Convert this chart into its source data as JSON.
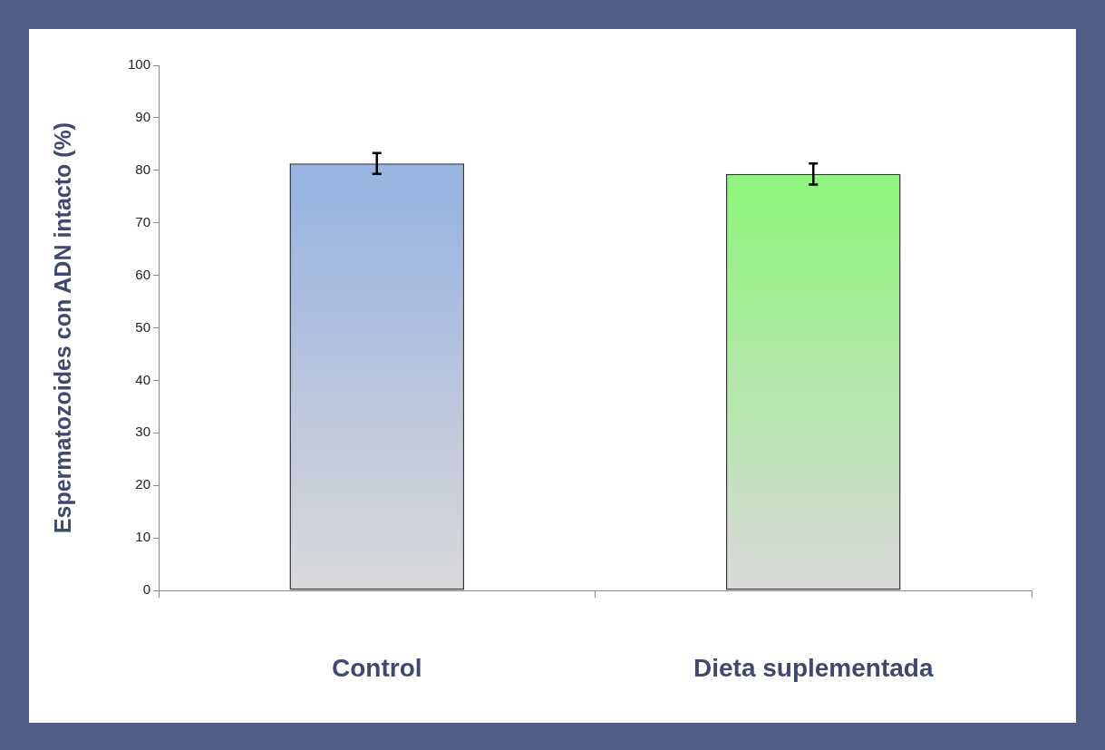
{
  "chart_data": {
    "type": "bar",
    "ylabel": "Espermatozoides con ADN intacto (%)",
    "categories": [
      "Control",
      "Dieta suplementada"
    ],
    "values": [
      81.3,
      79.3
    ],
    "colors": [
      "#9ab4e2",
      "#90f57e"
    ],
    "errors": [
      2,
      2
    ],
    "ylim": [
      0,
      100
    ],
    "yticks": [
      0,
      10,
      20,
      30,
      40,
      50,
      60,
      70,
      80,
      90,
      100
    ],
    "grid": false,
    "legend": false
  }
}
